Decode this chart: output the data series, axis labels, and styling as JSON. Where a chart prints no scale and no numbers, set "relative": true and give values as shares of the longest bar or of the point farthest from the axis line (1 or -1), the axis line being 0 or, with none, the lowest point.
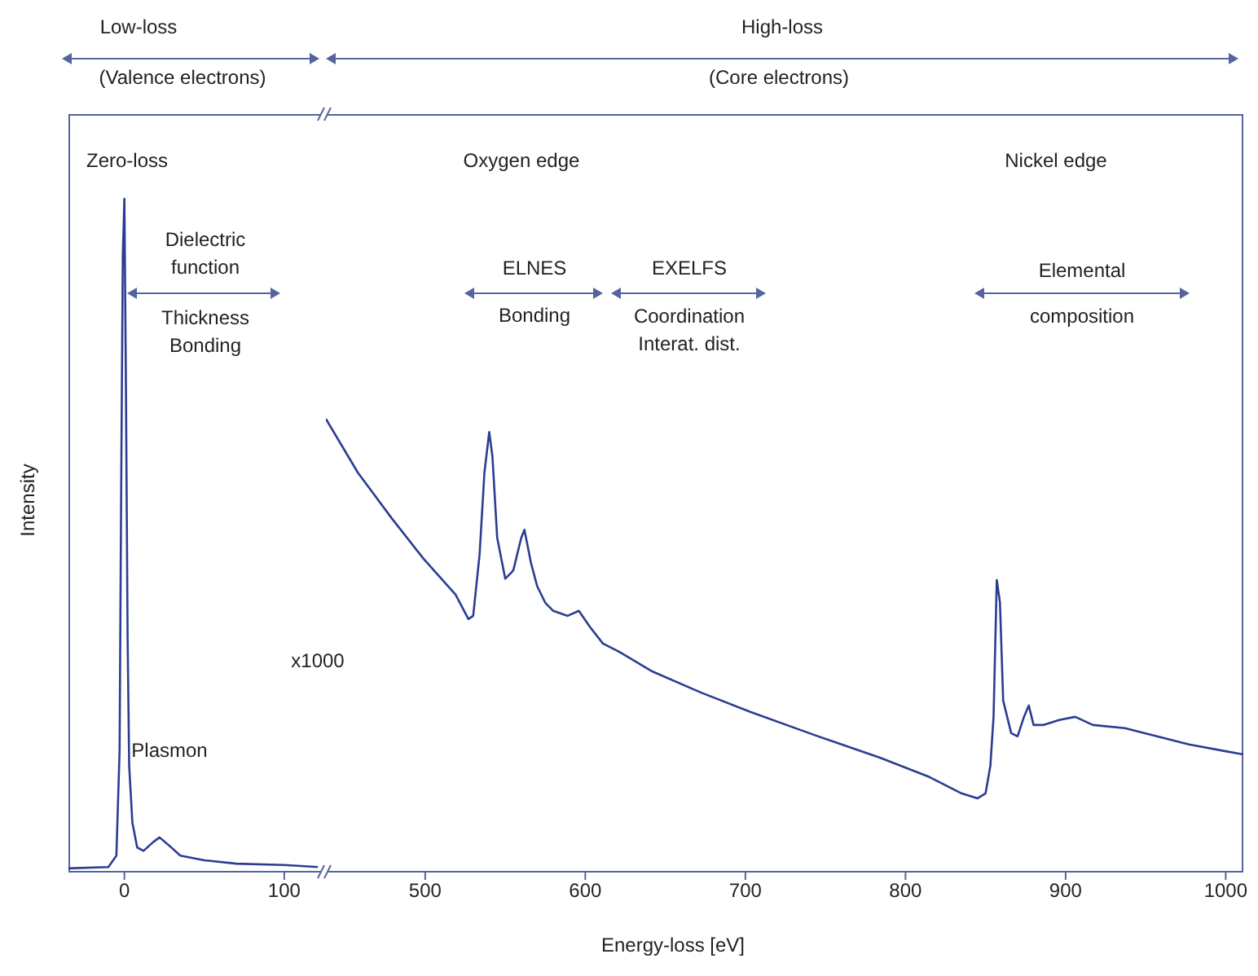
{
  "chart_data": [
    {
      "type": "line",
      "ylabel": "Intensity",
      "relative": true,
      "xlim": [
        -35,
        123
      ],
      "xticks": [
        0,
        100
      ],
      "tick_labels": "x",
      "annotations": [
        "Low-loss",
        "(Valence electrons)",
        "Zero-loss",
        "Dielectric\nfunction",
        "Thickness\nBonding",
        "Plasmon"
      ],
      "series": [
        {
          "color": "#2b3d91",
          "x": [
            -35,
            -10,
            -5,
            -3,
            -2,
            -1,
            0,
            1,
            2,
            3,
            5,
            8,
            12,
            18,
            22,
            27,
            35,
            50,
            70,
            100,
            121
          ],
          "values": [
            0.005,
            0.007,
            0.024,
            0.18,
            0.57,
            0.915,
            1,
            0.71,
            0.35,
            0.157,
            0.073,
            0.036,
            0.031,
            0.044,
            0.051,
            0.041,
            0.024,
            0.017,
            0.012,
            0.01,
            0.007
          ]
        }
      ]
    },
    {
      "type": "line",
      "xlabel": "Energy-loss [eV]",
      "relative": true,
      "xlim": [
        438,
        1011
      ],
      "xticks": [
        500,
        600,
        700,
        800,
        900,
        1000
      ],
      "tick_labels": "x",
      "annotations": [
        "High-loss",
        "(Core electrons)",
        "Oxygen edge",
        "ELNES",
        "Bonding",
        "EXELFS",
        "Coordination\nInterat. dist.",
        "Nickel edge",
        "Elemental\ncomposition",
        "x1000"
      ],
      "series": [
        {
          "color": "#2b3d91",
          "x": [
            438,
            458,
            479,
            499,
            519,
            527,
            530,
            534,
            537,
            540,
            542,
            545,
            550,
            555,
            560,
            562,
            566,
            570,
            575,
            580,
            589,
            596,
            603,
            611,
            621,
            642,
            672,
            703,
            743,
            784,
            815,
            835,
            845,
            850,
            853,
            855,
            857,
            859,
            861,
            866,
            870,
            874,
            877,
            880,
            886,
            896,
            906,
            917,
            937,
            957,
            977,
            1000,
            1011
          ],
          "values": [
            1,
            0.881,
            0.781,
            0.691,
            0.612,
            0.558,
            0.565,
            0.701,
            0.881,
            0.971,
            0.917,
            0.737,
            0.647,
            0.665,
            0.737,
            0.755,
            0.683,
            0.63,
            0.594,
            0.576,
            0.565,
            0.576,
            0.54,
            0.504,
            0.486,
            0.442,
            0.396,
            0.353,
            0.302,
            0.252,
            0.209,
            0.173,
            0.162,
            0.173,
            0.234,
            0.342,
            0.644,
            0.594,
            0.378,
            0.306,
            0.299,
            0.342,
            0.367,
            0.324,
            0.324,
            0.335,
            0.342,
            0.324,
            0.317,
            0.299,
            0.281,
            0.266,
            0.259
          ]
        }
      ]
    }
  ]
}
